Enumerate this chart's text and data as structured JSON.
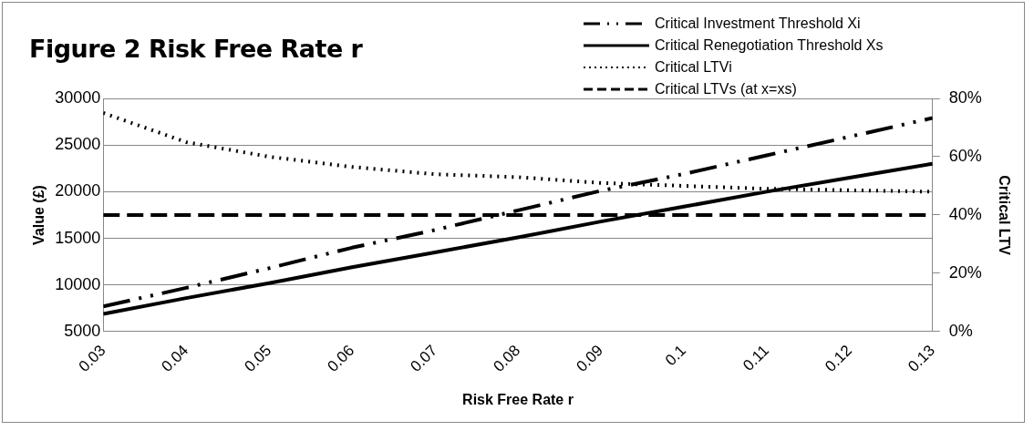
{
  "chart_data": {
    "type": "line",
    "title": "Figure 2 Risk Free Rate r",
    "xlabel": "Risk Free Rate r",
    "ylabel": "Value (£)",
    "y2label": "Critical LTV",
    "x": [
      0.03,
      0.04,
      0.05,
      0.06,
      0.07,
      0.08,
      0.09,
      0.1,
      0.11,
      0.12,
      0.13
    ],
    "series": [
      {
        "name": "Critical Investment  Threshold Xi",
        "color": "#000000",
        "line_style": "dashdot",
        "values": [
          7700,
          9700,
          11800,
          14000,
          15900,
          18000,
          20100,
          21900,
          23900,
          25900,
          27900
        ]
      },
      {
        "name": "Critical Renegotiation  Threshold Xs",
        "color": "#000000",
        "line_style": "solid",
        "values": [
          6900,
          8600,
          10200,
          11900,
          13500,
          15100,
          16800,
          18400,
          20000,
          21500,
          23000
        ]
      },
      {
        "name": "Critical LTVi",
        "color": "#000000",
        "line_style": "dotted",
        "axis": "y2",
        "values": [
          75,
          65,
          60,
          56.5,
          54,
          53,
          51,
          50,
          49,
          48.5,
          48
        ]
      },
      {
        "name": "Critical LTVs (at x=xs)",
        "color": "#000000",
        "line_style": "dashed",
        "axis": "y2",
        "values": [
          40,
          40,
          40,
          40,
          40,
          40,
          40,
          40,
          40,
          40,
          40
        ]
      }
    ],
    "xlim": [
      0.03,
      0.13
    ],
    "xticks": [
      0.03,
      0.04,
      0.05,
      0.06,
      0.07,
      0.08,
      0.09,
      0.1,
      0.11,
      0.12,
      0.13
    ],
    "ylim": [
      5000,
      30000
    ],
    "yticks": [
      5000,
      10000,
      15000,
      20000,
      25000,
      30000
    ],
    "y2lim": [
      0,
      80
    ],
    "y2ticks": [
      {
        "value": 0,
        "label": "0%"
      },
      {
        "value": 20,
        "label": "20%"
      },
      {
        "value": 40,
        "label": "40%"
      },
      {
        "value": 60,
        "label": "60%"
      },
      {
        "value": 80,
        "label": "80%"
      }
    ],
    "grid": "y",
    "legend": "top right",
    "marker": "none"
  }
}
